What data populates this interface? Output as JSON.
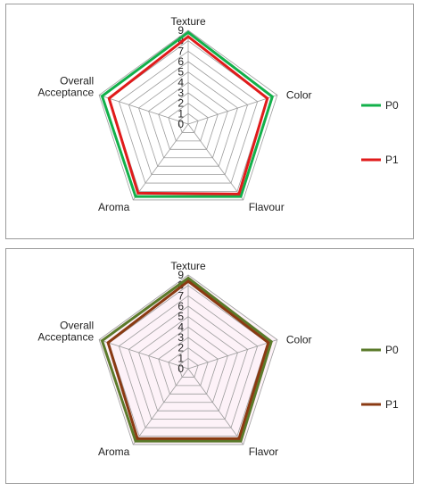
{
  "chart_data": [
    {
      "type": "radar",
      "categories": [
        "Texture",
        "Color",
        "Flavour",
        "Aroma",
        "Overall Acceptance"
      ],
      "category_labels": [
        "Texture",
        "Color",
        "Flavour",
        "Aroma",
        [
          "Overall",
          "Acceptance"
        ]
      ],
      "rlim": [
        0,
        9
      ],
      "ticks": [
        "0",
        "1",
        "2",
        "3",
        "4",
        "5",
        "6",
        "7",
        "8",
        "9"
      ],
      "grid": true,
      "legend": "right",
      "series": [
        {
          "name": "P0",
          "color": "#12b04a",
          "values": [
            8.8,
            8.5,
            8.6,
            8.6,
            8.7
          ]
        },
        {
          "name": "P1",
          "color": "#e01b1b",
          "values": [
            8.4,
            8.0,
            8.3,
            8.2,
            8.0
          ]
        }
      ]
    },
    {
      "type": "radar",
      "categories": [
        "Texture",
        "Color",
        "Flavor",
        "Aroma",
        "Overall Acceptance"
      ],
      "category_labels": [
        "Texture",
        "Color",
        "Flavor",
        "Aroma",
        [
          "Overall",
          "Acceptance"
        ]
      ],
      "rlim": [
        0,
        9
      ],
      "ticks": [
        "0",
        "1",
        "2",
        "3",
        "4",
        "5",
        "6",
        "7",
        "8",
        "9"
      ],
      "grid": true,
      "legend": "right",
      "series": [
        {
          "name": "P0",
          "color": "#5a7a2a",
          "values": [
            8.7,
            8.4,
            8.6,
            8.6,
            8.7
          ]
        },
        {
          "name": "P1",
          "color": "#8a3a12",
          "values": [
            8.4,
            8.1,
            8.3,
            8.3,
            8.1
          ]
        }
      ]
    }
  ]
}
